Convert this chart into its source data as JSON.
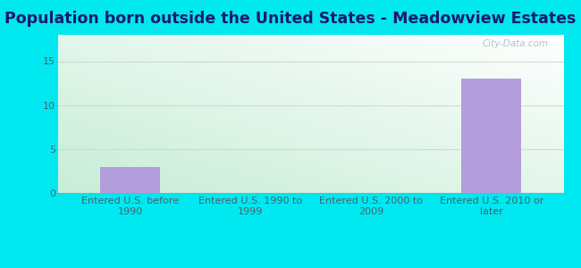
{
  "title": "Population born outside the United States - Meadowview Estates",
  "categories": [
    "Entered U.S. before\n1990",
    "Entered U.S. 1990 to\n1999",
    "Entered U.S. 2000 to\n2009",
    "Entered U.S. 2010 or\nlater"
  ],
  "values": [
    3,
    0,
    0,
    13
  ],
  "bar_color": "#b39ddb",
  "bg_outer": "#00e8f0",
  "bg_grad_topleft": "#e8f8f0",
  "bg_grad_topright": "#f5fafa",
  "bg_grad_bottom": "#c8ecd8",
  "title_color": "#1a1a6e",
  "axis_color": "#90a4ae",
  "tick_color": "#4a6070",
  "grid_color": "#ccddcc",
  "ylim": [
    0,
    18
  ],
  "yticks": [
    0,
    5,
    10,
    15
  ],
  "watermark": "City-Data.com",
  "watermark_color": "#aabbcc",
  "title_fontsize": 12.5,
  "tick_fontsize": 8.0
}
